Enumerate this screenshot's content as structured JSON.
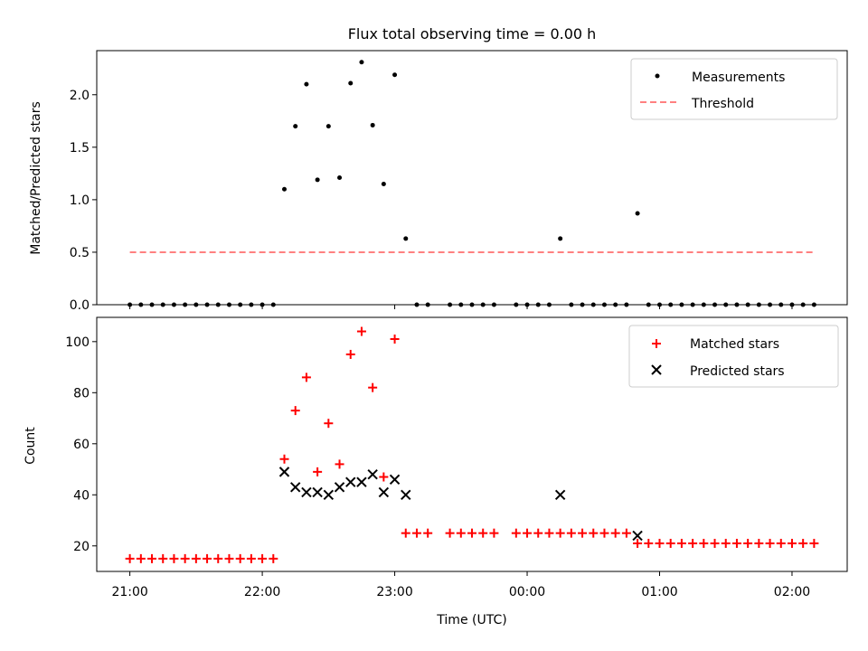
{
  "chart_data": [
    {
      "type": "scatter",
      "title": "Flux total observing time = 0.00 h",
      "xlabel": "",
      "ylabel": "Matched/Predicted stars",
      "x_unit": "minutes from 21:00 UTC",
      "xlim": [
        -15,
        325
      ],
      "ylim": [
        0,
        2.42
      ],
      "yticks": [
        0.0,
        0.5,
        1.0,
        1.5,
        2.0
      ],
      "yticklabels": [
        "0.0",
        "0.5",
        "1.0",
        "1.5",
        "2.0"
      ],
      "legend": {
        "placement": "upper right",
        "entries": [
          "Measurements",
          "Threshold"
        ]
      },
      "series": [
        {
          "name": "Measurements",
          "marker": "dot",
          "color": "#000000",
          "points": [
            [
              0,
              0
            ],
            [
              5,
              0
            ],
            [
              10,
              0
            ],
            [
              15,
              0
            ],
            [
              20,
              0
            ],
            [
              25,
              0
            ],
            [
              30,
              0
            ],
            [
              35,
              0
            ],
            [
              40,
              0
            ],
            [
              45,
              0
            ],
            [
              50,
              0
            ],
            [
              55,
              0
            ],
            [
              60,
              0
            ],
            [
              65,
              0
            ],
            [
              70,
              1.1
            ],
            [
              75,
              1.7
            ],
            [
              80,
              2.1
            ],
            [
              85,
              1.19
            ],
            [
              90,
              1.7
            ],
            [
              95,
              1.21
            ],
            [
              100,
              2.11
            ],
            [
              105,
              2.31
            ],
            [
              110,
              1.71
            ],
            [
              115,
              1.15
            ],
            [
              120,
              2.19
            ],
            [
              125,
              0.63
            ],
            [
              130,
              0
            ],
            [
              135,
              0
            ],
            [
              145,
              0
            ],
            [
              150,
              0
            ],
            [
              155,
              0
            ],
            [
              160,
              0
            ],
            [
              165,
              0
            ],
            [
              175,
              0
            ],
            [
              180,
              0
            ],
            [
              185,
              0
            ],
            [
              190,
              0
            ],
            [
              195,
              0.63
            ],
            [
              200,
              0
            ],
            [
              205,
              0
            ],
            [
              210,
              0
            ],
            [
              215,
              0
            ],
            [
              220,
              0
            ],
            [
              225,
              0
            ],
            [
              230,
              0.87
            ],
            [
              235,
              0
            ],
            [
              240,
              0
            ],
            [
              245,
              0
            ],
            [
              250,
              0
            ],
            [
              255,
              0
            ],
            [
              260,
              0
            ],
            [
              265,
              0
            ],
            [
              270,
              0
            ],
            [
              275,
              0
            ],
            [
              280,
              0
            ],
            [
              285,
              0
            ],
            [
              290,
              0
            ],
            [
              295,
              0
            ],
            [
              300,
              0
            ],
            [
              305,
              0
            ],
            [
              310,
              0
            ]
          ]
        },
        {
          "name": "Threshold",
          "line": "dashed",
          "color": "#ff8080",
          "points": [
            [
              0,
              0.5
            ],
            [
              310,
              0.5
            ]
          ]
        }
      ]
    },
    {
      "type": "scatter",
      "title": "",
      "xlabel": "Time (UTC)",
      "ylabel": "Count",
      "x_unit": "minutes from 21:00 UTC",
      "xlim": [
        -15,
        325
      ],
      "ylim": [
        10,
        109.5
      ],
      "xticks": [
        0,
        60,
        120,
        180,
        240,
        300
      ],
      "xticklabels": [
        "21:00",
        "22:00",
        "23:00",
        "00:00",
        "01:00",
        "02:00"
      ],
      "yticks": [
        20,
        40,
        60,
        80,
        100
      ],
      "yticklabels": [
        "20",
        "40",
        "60",
        "80",
        "100"
      ],
      "legend": {
        "placement": "upper right",
        "entries": [
          "Matched stars",
          "Predicted stars"
        ]
      },
      "series": [
        {
          "name": "Matched stars",
          "marker": "plus",
          "color": "#ff0000",
          "points": [
            [
              0,
              15
            ],
            [
              5,
              15
            ],
            [
              10,
              15
            ],
            [
              15,
              15
            ],
            [
              20,
              15
            ],
            [
              25,
              15
            ],
            [
              30,
              15
            ],
            [
              35,
              15
            ],
            [
              40,
              15
            ],
            [
              45,
              15
            ],
            [
              50,
              15
            ],
            [
              55,
              15
            ],
            [
              60,
              15
            ],
            [
              65,
              15
            ],
            [
              70,
              54
            ],
            [
              75,
              73
            ],
            [
              80,
              86
            ],
            [
              85,
              49
            ],
            [
              90,
              68
            ],
            [
              95,
              52
            ],
            [
              100,
              95
            ],
            [
              105,
              104
            ],
            [
              110,
              82
            ],
            [
              115,
              47
            ],
            [
              120,
              101
            ],
            [
              125,
              25
            ],
            [
              130,
              25
            ],
            [
              135,
              25
            ],
            [
              145,
              25
            ],
            [
              150,
              25
            ],
            [
              155,
              25
            ],
            [
              160,
              25
            ],
            [
              165,
              25
            ],
            [
              175,
              25
            ],
            [
              180,
              25
            ],
            [
              185,
              25
            ],
            [
              190,
              25
            ],
            [
              195,
              25
            ],
            [
              200,
              25
            ],
            [
              205,
              25
            ],
            [
              210,
              25
            ],
            [
              215,
              25
            ],
            [
              220,
              25
            ],
            [
              225,
              25
            ],
            [
              230,
              21
            ],
            [
              235,
              21
            ],
            [
              240,
              21
            ],
            [
              245,
              21
            ],
            [
              250,
              21
            ],
            [
              255,
              21
            ],
            [
              260,
              21
            ],
            [
              265,
              21
            ],
            [
              270,
              21
            ],
            [
              275,
              21
            ],
            [
              280,
              21
            ],
            [
              285,
              21
            ],
            [
              290,
              21
            ],
            [
              295,
              21
            ],
            [
              300,
              21
            ],
            [
              305,
              21
            ],
            [
              310,
              21
            ]
          ]
        },
        {
          "name": "Predicted stars",
          "marker": "x",
          "color": "#000000",
          "points": [
            [
              70,
              49
            ],
            [
              75,
              43
            ],
            [
              80,
              41
            ],
            [
              85,
              41
            ],
            [
              90,
              40
            ],
            [
              95,
              43
            ],
            [
              100,
              45
            ],
            [
              105,
              45
            ],
            [
              110,
              48
            ],
            [
              115,
              41
            ],
            [
              120,
              46
            ],
            [
              125,
              40
            ],
            [
              195,
              40
            ],
            [
              230,
              24
            ]
          ]
        }
      ]
    }
  ]
}
